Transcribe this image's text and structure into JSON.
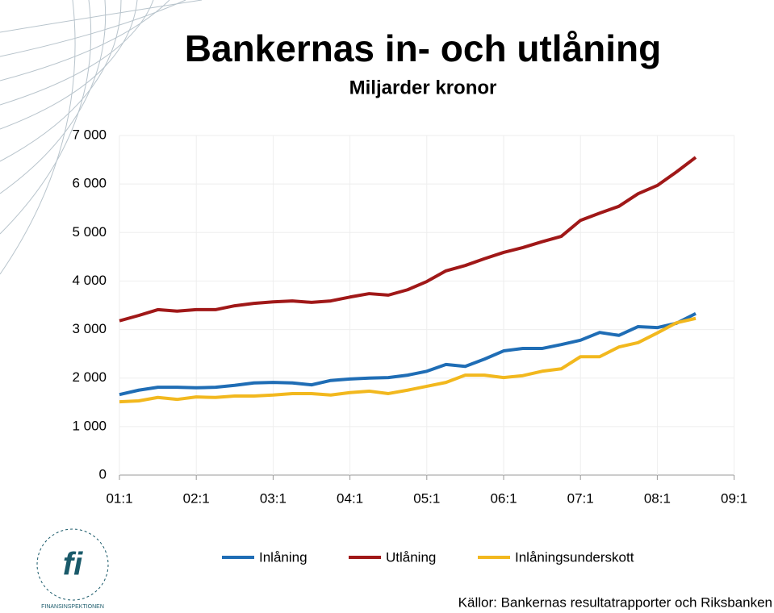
{
  "chart_data": {
    "type": "line",
    "title": "Bankernas in- och utlåning",
    "subtitle": "Miljarder kronor",
    "source": "Källor: Bankernas resultatrapporter och Riksbanken",
    "logo_text": "FINANSINSPEKTIONEN",
    "categories": [
      "01:1",
      null,
      null,
      null,
      "02:1",
      null,
      null,
      null,
      "03:1",
      null,
      null,
      null,
      "04:1",
      null,
      null,
      null,
      "05:1",
      null,
      null,
      null,
      "06:1",
      null,
      null,
      null,
      "07:1",
      null,
      null,
      null,
      "08:1",
      null,
      null,
      null,
      "09:1"
    ],
    "series": [
      {
        "name": "Inlåning",
        "color": "#1f6db5",
        "values": [
          1660,
          1750,
          1810,
          1810,
          1800,
          1810,
          1850,
          1900,
          1910,
          1900,
          1860,
          1950,
          1980,
          2000,
          2010,
          2060,
          2140,
          2280,
          2240,
          2390,
          2560,
          2610,
          2610,
          2690,
          2780,
          2940,
          2880,
          3060,
          3040,
          3130,
          3330,
          null,
          null
        ]
      },
      {
        "name": "Utlåning",
        "color": "#a01818",
        "values": [
          3180,
          3290,
          3410,
          3380,
          3410,
          3410,
          3490,
          3540,
          3570,
          3590,
          3560,
          3590,
          3670,
          3740,
          3710,
          3820,
          3990,
          4210,
          4320,
          4460,
          4590,
          4690,
          4810,
          4920,
          5250,
          5400,
          5540,
          5800,
          5970,
          6250,
          6550,
          null,
          null
        ]
      },
      {
        "name": "Inlåningsunderskott",
        "color": "#f2b81e",
        "values": [
          1510,
          1530,
          1600,
          1560,
          1610,
          1600,
          1630,
          1630,
          1650,
          1680,
          1680,
          1650,
          1700,
          1730,
          1680,
          1750,
          1830,
          1910,
          2060,
          2060,
          2010,
          2050,
          2140,
          2190,
          2440,
          2440,
          2640,
          2730,
          2930,
          3140,
          3230,
          null,
          null
        ]
      }
    ],
    "ylim": [
      0,
      7000
    ],
    "yticks": [
      0,
      {
        "value": 1000,
        "label": "1 000"
      },
      {
        "value": 2000,
        "label": "2 000"
      },
      {
        "value": 3000,
        "label": "3 000"
      },
      {
        "value": 4000,
        "label": "4 000"
      },
      {
        "value": 5000,
        "label": "5 000"
      },
      {
        "value": 6000,
        "label": "6 000"
      },
      {
        "value": 7000,
        "label": "7 000"
      }
    ],
    "grid": true
  }
}
